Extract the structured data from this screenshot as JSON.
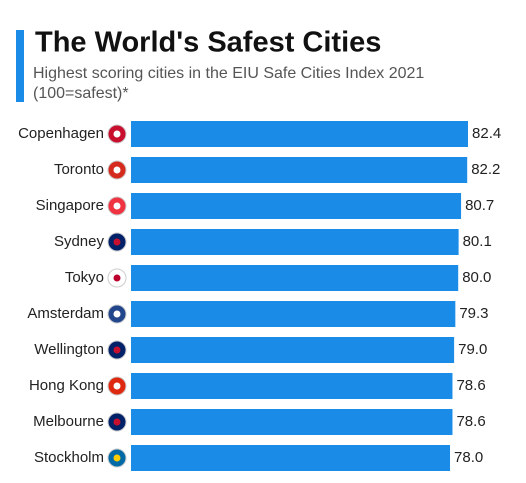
{
  "chart_data": {
    "type": "bar",
    "orientation": "horizontal",
    "title": "The World's Safest Cities",
    "subtitle": "Highest scoring cities in the EIU Safe Cities Index 2021 (100=safest)*",
    "categories": [
      "Copenhagen",
      "Toronto",
      "Singapore",
      "Sydney",
      "Tokyo",
      "Amsterdam",
      "Wellington",
      "Hong Kong",
      "Melbourne",
      "Stockholm"
    ],
    "values": [
      82.4,
      82.2,
      80.7,
      80.1,
      80.0,
      79.3,
      79.0,
      78.6,
      78.6,
      78.0
    ],
    "value_labels": [
      "82.4",
      "82.2",
      "80.7",
      "80.1",
      "80.0",
      "79.3",
      "79.0",
      "78.6",
      "78.6",
      "78.0"
    ],
    "color": "#1a8ce8"
  }
}
